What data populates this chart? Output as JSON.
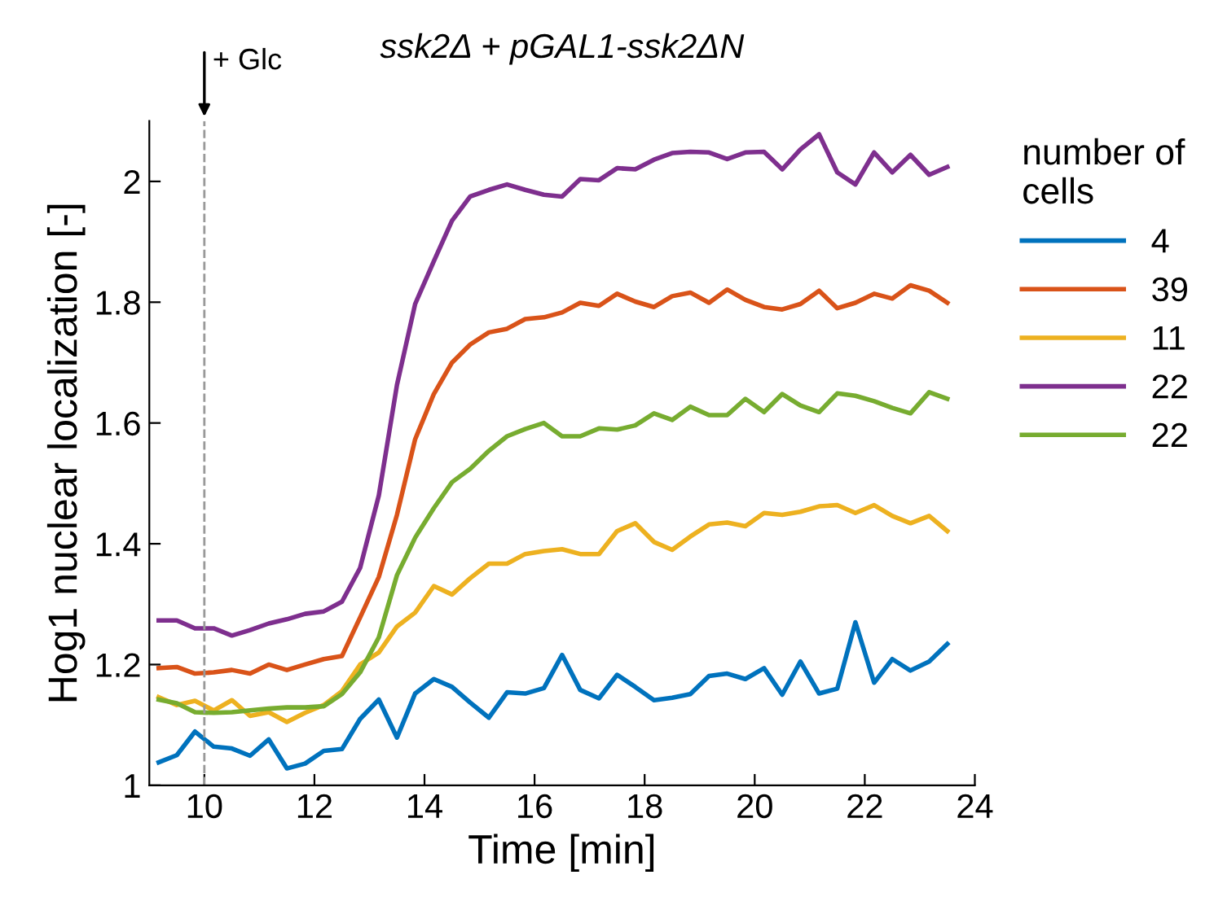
{
  "chart_data": {
    "type": "line",
    "title": "ssk2Δ + pGAL1-ssk2ΔN",
    "xlabel": "Time [min]",
    "ylabel": "Hog1 nuclear localization [-]",
    "legend_title": "number of\ncells",
    "legend": "right",
    "x": [
      9.17,
      9.5,
      9.83,
      10.17,
      10.5,
      10.83,
      11.17,
      11.5,
      11.83,
      12.17,
      12.5,
      12.83,
      13.17,
      13.5,
      13.83,
      14.17,
      14.5,
      14.83,
      15.17,
      15.5,
      15.83,
      16.17,
      16.5,
      16.83,
      17.17,
      17.5,
      17.83,
      18.17,
      18.5,
      18.83,
      19.17,
      19.5,
      19.83,
      20.17,
      20.5,
      20.83,
      21.17,
      21.5,
      21.83,
      22.17,
      22.5,
      22.83,
      23.17,
      23.5
    ],
    "series": [
      {
        "name": "4",
        "color": "#0072bd",
        "values": [
          1.038,
          1.05,
          1.089,
          1.064,
          1.061,
          1.049,
          1.076,
          1.028,
          1.036,
          1.057,
          1.06,
          1.11,
          1.142,
          1.079,
          1.152,
          1.176,
          1.163,
          1.137,
          1.112,
          1.154,
          1.152,
          1.161,
          1.216,
          1.158,
          1.144,
          1.183,
          1.163,
          1.141,
          1.145,
          1.151,
          1.181,
          1.185,
          1.176,
          1.194,
          1.15,
          1.205,
          1.152,
          1.16,
          1.27,
          1.17,
          1.209,
          1.19,
          1.205,
          1.234
        ]
      },
      {
        "name": "39",
        "color": "#d95319",
        "values": [
          1.194,
          1.196,
          1.185,
          1.187,
          1.191,
          1.185,
          1.2,
          1.191,
          1.2,
          1.209,
          1.214,
          1.278,
          1.345,
          1.448,
          1.573,
          1.648,
          1.7,
          1.73,
          1.75,
          1.756,
          1.772,
          1.775,
          1.783,
          1.799,
          1.794,
          1.814,
          1.801,
          1.792,
          1.81,
          1.816,
          1.799,
          1.821,
          1.804,
          1.792,
          1.788,
          1.797,
          1.819,
          1.79,
          1.799,
          1.814,
          1.806,
          1.828,
          1.819,
          1.799
        ]
      },
      {
        "name": "11",
        "color": "#edb120",
        "values": [
          1.146,
          1.133,
          1.14,
          1.124,
          1.141,
          1.115,
          1.121,
          1.105,
          1.12,
          1.133,
          1.156,
          1.2,
          1.22,
          1.263,
          1.286,
          1.33,
          1.316,
          1.343,
          1.367,
          1.367,
          1.383,
          1.388,
          1.391,
          1.383,
          1.383,
          1.421,
          1.434,
          1.403,
          1.39,
          1.412,
          1.432,
          1.435,
          1.429,
          1.451,
          1.448,
          1.453,
          1.462,
          1.464,
          1.451,
          1.464,
          1.446,
          1.434,
          1.446,
          1.421
        ]
      },
      {
        "name": "22",
        "color": "#7e2f8e",
        "values": [
          1.273,
          1.273,
          1.26,
          1.26,
          1.248,
          1.257,
          1.268,
          1.275,
          1.284,
          1.288,
          1.304,
          1.36,
          1.48,
          1.663,
          1.797,
          1.868,
          1.935,
          1.975,
          1.986,
          1.995,
          1.986,
          1.978,
          1.975,
          2.004,
          2.002,
          2.022,
          2.02,
          2.036,
          2.047,
          2.049,
          2.048,
          2.037,
          2.048,
          2.049,
          2.02,
          2.053,
          2.078,
          2.015,
          1.995,
          2.048,
          2.015,
          2.044,
          2.011,
          2.024
        ]
      },
      {
        "name": "22",
        "color": "#77ac30",
        "values": [
          1.142,
          1.136,
          1.121,
          1.12,
          1.121,
          1.124,
          1.127,
          1.129,
          1.129,
          1.131,
          1.151,
          1.187,
          1.245,
          1.348,
          1.41,
          1.459,
          1.502,
          1.524,
          1.554,
          1.578,
          1.59,
          1.6,
          1.578,
          1.578,
          1.591,
          1.589,
          1.596,
          1.616,
          1.605,
          1.627,
          1.613,
          1.613,
          1.64,
          1.618,
          1.648,
          1.629,
          1.618,
          1.649,
          1.645,
          1.636,
          1.625,
          1.616,
          1.651,
          1.64
        ]
      }
    ],
    "xlim": [
      9,
      24
    ],
    "xticks": [
      10,
      12,
      14,
      16,
      18,
      20,
      22,
      24
    ],
    "ylim": [
      1,
      2.1
    ],
    "yticks": [
      1,
      {
        "value": 1.2,
        "label": "1.2"
      },
      {
        "value": 1.4,
        "label": "1.4"
      },
      {
        "value": 1.6,
        "label": "1.6"
      },
      {
        "value": 1.8,
        "label": "1.8"
      },
      2
    ],
    "ref_lines": [
      {
        "axis": "x",
        "value": 10,
        "label": "+ Glc",
        "color": "#999999",
        "line_style": "dashed"
      }
    ],
    "grid": false,
    "marker": "none",
    "line_style": "solid"
  }
}
